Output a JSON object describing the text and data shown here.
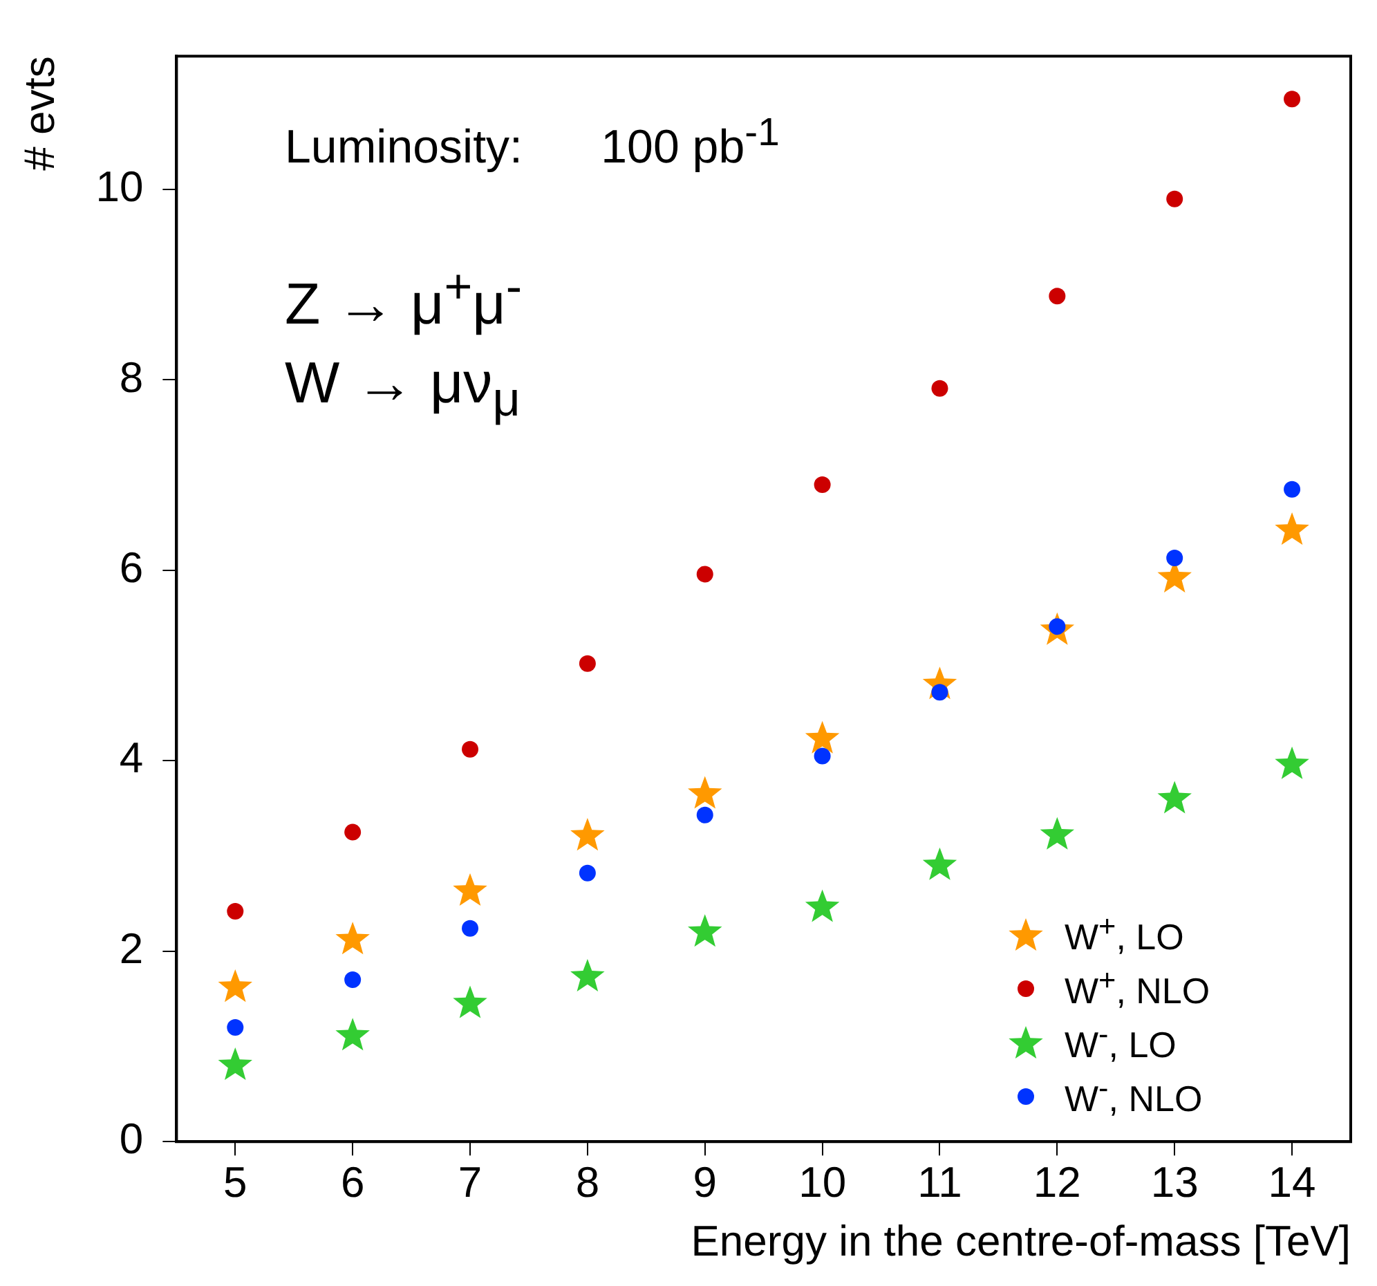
{
  "chart_data": {
    "type": "scatter",
    "xlabel": "Energy in the centre-of-mass [TeV]",
    "ylabel": "# evts",
    "x": [
      5,
      6,
      7,
      8,
      9,
      10,
      11,
      12,
      13,
      14
    ],
    "xlim": [
      4.5,
      14.5
    ],
    "xticks": [
      5,
      6,
      7,
      8,
      9,
      10,
      11,
      12,
      13,
      14
    ],
    "ylim": [
      0,
      11.4
    ],
    "yticks": [
      0,
      2,
      4,
      6,
      8,
      10
    ],
    "grid": false,
    "legend": "bottom right",
    "annotations": [
      "Luminosity:      100 pb$^{-1}$",
      "Z → μ$^{+}$μ$^{-}$",
      "W → μν$_{μ}$"
    ],
    "series": [
      {
        "name": "W$^{+}$, LO",
        "color": "#ff9900",
        "marker": "star",
        "values": [
          1.62,
          2.12,
          2.63,
          3.21,
          3.65,
          4.23,
          4.8,
          5.37,
          5.92,
          6.42
        ]
      },
      {
        "name": "W$^{+}$, NLO",
        "color": "#cc0000",
        "marker": "circle",
        "values": [
          2.42,
          3.25,
          4.12,
          5.02,
          5.96,
          6.9,
          7.91,
          8.88,
          9.9,
          10.95
        ]
      },
      {
        "name": "W$^{-}$, LO",
        "color": "#33cc33",
        "marker": "star",
        "values": [
          0.8,
          1.11,
          1.45,
          1.73,
          2.2,
          2.46,
          2.9,
          3.22,
          3.6,
          3.96
        ]
      },
      {
        "name": "W$^{-}$, NLO",
        "color": "#0033ff",
        "marker": "circle",
        "values": [
          1.2,
          1.7,
          2.24,
          2.82,
          3.43,
          4.05,
          4.72,
          5.41,
          6.13,
          6.85
        ]
      }
    ]
  }
}
